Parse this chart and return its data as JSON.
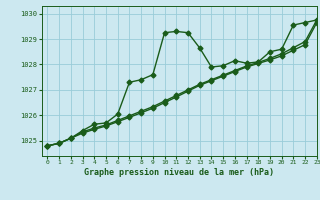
{
  "title": "Graphe pression niveau de la mer (hPa)",
  "xlim": [
    -0.5,
    23
  ],
  "ylim": [
    1024.4,
    1030.3
  ],
  "yticks": [
    1025,
    1026,
    1027,
    1028,
    1029,
    1030
  ],
  "xticks": [
    0,
    1,
    2,
    3,
    4,
    5,
    6,
    7,
    8,
    9,
    10,
    11,
    12,
    13,
    14,
    15,
    16,
    17,
    18,
    19,
    20,
    21,
    22,
    23
  ],
  "bg_color": "#cce8f0",
  "grid_color": "#99ccd9",
  "line_color": "#1a5c1a",
  "marker": "D",
  "marker_size": 2.5,
  "line_width": 1.0,
  "series": [
    [
      1024.8,
      1024.9,
      1025.1,
      1025.4,
      1025.65,
      1025.7,
      1026.05,
      1027.3,
      1027.4,
      1027.6,
      1029.25,
      1029.3,
      1029.25,
      1028.65,
      1027.9,
      1027.95,
      1028.15,
      1028.05,
      1028.1,
      1028.5,
      1028.6,
      1029.55,
      1029.65,
      1029.75
    ],
    [
      1024.8,
      1024.9,
      1025.1,
      1025.35,
      1025.5,
      1025.62,
      1025.8,
      1025.98,
      1026.16,
      1026.34,
      1026.56,
      1026.78,
      1027.0,
      1027.22,
      1027.4,
      1027.58,
      1027.76,
      1027.94,
      1028.08,
      1028.24,
      1028.42,
      1028.66,
      1028.9,
      1029.75
    ],
    [
      1024.8,
      1024.9,
      1025.1,
      1025.3,
      1025.45,
      1025.58,
      1025.75,
      1025.92,
      1026.1,
      1026.28,
      1026.5,
      1026.72,
      1026.95,
      1027.18,
      1027.36,
      1027.54,
      1027.72,
      1027.9,
      1028.04,
      1028.18,
      1028.34,
      1028.56,
      1028.78,
      1029.65
    ]
  ]
}
